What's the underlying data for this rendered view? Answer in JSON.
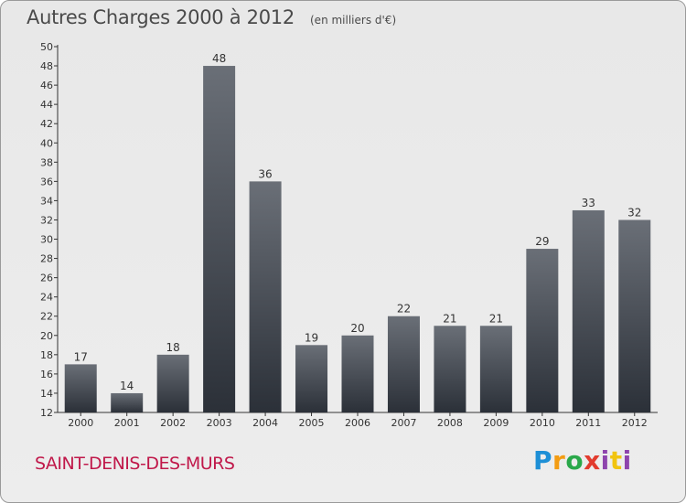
{
  "header": {
    "title": "Autres Charges 2000 à 2012",
    "unit": "(en milliers d'€)"
  },
  "footer": {
    "commune": "SAINT-DENIS-DES-MURS",
    "logo_text": "Proxiti"
  },
  "colors": {
    "bar_top": "#666b73",
    "bar_bottom": "#2b3038",
    "commune": "#c0184a"
  },
  "chart_data": {
    "type": "bar",
    "title": "Autres Charges 2000 à 2012",
    "subtitle": "(en milliers d'€)",
    "categories": [
      "2000",
      "2001",
      "2002",
      "2003",
      "2004",
      "2005",
      "2006",
      "2007",
      "2008",
      "2009",
      "2010",
      "2011",
      "2012"
    ],
    "values": [
      17,
      14,
      18,
      48,
      36,
      19,
      20,
      22,
      21,
      21,
      29,
      33,
      32
    ],
    "ylim": [
      12,
      50
    ],
    "yticks": [
      12,
      14,
      16,
      18,
      20,
      22,
      24,
      26,
      28,
      30,
      32,
      34,
      36,
      38,
      40,
      42,
      44,
      46,
      48,
      50
    ],
    "grid": false,
    "legend": "none"
  }
}
